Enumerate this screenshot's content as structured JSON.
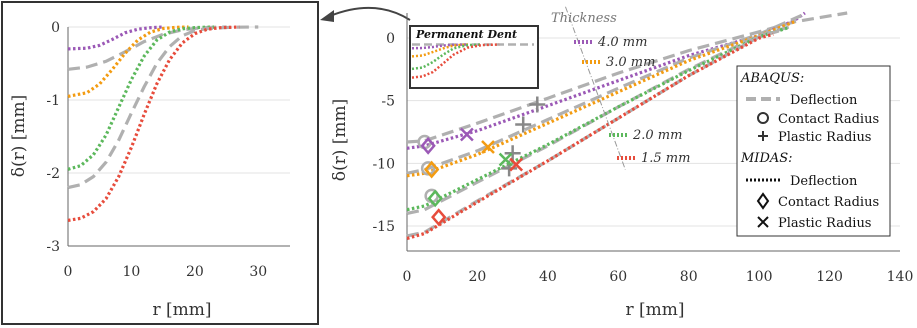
{
  "chart_data": [
    {
      "id": "inset",
      "type": "line",
      "xlabel": "r [mm]",
      "ylabel": "δ(r) [mm]",
      "xlim": [
        0,
        35
      ],
      "ylim": [
        -3,
        0
      ],
      "xticks": [
        "0",
        "10",
        "20",
        "30"
      ],
      "yticks": [
        "0",
        "-1",
        "-2",
        "-3"
      ],
      "grid": "horizontal",
      "series": [
        {
          "color": "#9b59b6",
          "style": "dotted",
          "x": [
            0,
            3,
            5,
            7,
            9,
            11,
            13,
            15
          ],
          "y": [
            -0.3,
            -0.29,
            -0.25,
            -0.17,
            -0.08,
            -0.03,
            -0.01,
            0
          ]
        },
        {
          "color": "#b0b0b0",
          "style": "dashed",
          "x": [
            0,
            3,
            6,
            9,
            12,
            15,
            18,
            21,
            25
          ],
          "y": [
            -0.58,
            -0.55,
            -0.47,
            -0.34,
            -0.2,
            -0.1,
            -0.04,
            -0.01,
            0
          ]
        },
        {
          "color": "#f39c12",
          "style": "dotted",
          "x": [
            0,
            3,
            5,
            7,
            9,
            11,
            13,
            15,
            17,
            19
          ],
          "y": [
            -0.95,
            -0.9,
            -0.78,
            -0.58,
            -0.36,
            -0.18,
            -0.07,
            -0.02,
            -0.005,
            0
          ]
        },
        {
          "color": "#5cb85c",
          "style": "dotted",
          "x": [
            0,
            2,
            4,
            6,
            8,
            10,
            12,
            14,
            16,
            18,
            20,
            23
          ],
          "y": [
            -1.95,
            -1.9,
            -1.75,
            -1.48,
            -1.1,
            -0.72,
            -0.4,
            -0.18,
            -0.07,
            -0.025,
            -0.008,
            0
          ]
        },
        {
          "color": "#b0b0b0",
          "style": "dashed",
          "x": [
            0,
            2,
            4,
            6,
            8,
            10,
            12,
            14,
            16,
            18,
            20,
            22,
            26,
            30
          ],
          "y": [
            -2.2,
            -2.16,
            -2.05,
            -1.85,
            -1.55,
            -1.18,
            -0.82,
            -0.5,
            -0.27,
            -0.12,
            -0.05,
            -0.02,
            -0.003,
            0
          ]
        },
        {
          "color": "#e74c3c",
          "style": "dotted",
          "x": [
            0,
            2,
            4,
            6,
            8,
            10,
            12,
            14,
            16,
            18,
            20,
            22,
            24,
            27
          ],
          "y": [
            -2.65,
            -2.62,
            -2.53,
            -2.35,
            -2.05,
            -1.65,
            -1.2,
            -0.78,
            -0.45,
            -0.22,
            -0.09,
            -0.03,
            -0.01,
            0
          ]
        }
      ]
    },
    {
      "id": "main",
      "type": "line",
      "xlabel": "r [mm]",
      "ylabel": "δ(r) [mm]",
      "xlim": [
        0,
        140
      ],
      "ylim": [
        -17,
        2
      ],
      "xticks": [
        "0",
        "20",
        "40",
        "60",
        "80",
        "100",
        "120",
        "140"
      ],
      "yticks": [
        "0",
        "-5",
        "-10",
        "-15"
      ],
      "grid": "horizontal",
      "annotations": {
        "thickness": "Thickness",
        "dent": "Permanent Dent",
        "t40": "4.0 mm",
        "t30": "3.0 mm",
        "t20": "2.0 mm",
        "t15": "1.5 mm"
      },
      "series": [
        {
          "color": "#b0b0b0",
          "style": "dashed",
          "x": [
            0,
            5,
            20,
            40,
            60,
            80,
            100,
            110,
            125
          ],
          "y": [
            -8.3,
            -8.2,
            -6.8,
            -4.8,
            -2.8,
            -1.0,
            0.5,
            1.3,
            2.0
          ]
        },
        {
          "color": "#9b59b6",
          "style": "dotted",
          "x": [
            0,
            5,
            20,
            40,
            60,
            80,
            100,
            110,
            113
          ],
          "y": [
            -8.8,
            -8.6,
            -7.4,
            -5.4,
            -3.4,
            -1.4,
            0.2,
            1.4,
            2.0
          ]
        },
        {
          "color": "#b0b0b0",
          "style": "dashed",
          "x": [
            0,
            5,
            20,
            40,
            60,
            80,
            100,
            112
          ],
          "y": [
            -10.8,
            -10.5,
            -9.0,
            -6.5,
            -4.0,
            -1.6,
            0.3,
            1.8
          ]
        },
        {
          "color": "#f39c12",
          "style": "dotted",
          "x": [
            0,
            5,
            20,
            40,
            60,
            80,
            100,
            110
          ],
          "y": [
            -11.0,
            -10.8,
            -9.3,
            -6.8,
            -4.3,
            -1.8,
            0.2,
            1.3
          ]
        },
        {
          "color": "#b0b0b0",
          "style": "dashed",
          "x": [
            0,
            5,
            20,
            40,
            60,
            80,
            100,
            110
          ],
          "y": [
            -14.0,
            -13.7,
            -11.5,
            -8.6,
            -5.5,
            -2.5,
            0.2,
            1.0
          ]
        },
        {
          "color": "#5cb85c",
          "style": "dotted",
          "x": [
            0,
            5,
            20,
            40,
            60,
            80,
            100,
            108
          ],
          "y": [
            -13.7,
            -13.4,
            -11.3,
            -8.5,
            -5.5,
            -2.6,
            0.1,
            0.8
          ]
        },
        {
          "color": "#b0b0b0",
          "style": "dashed",
          "x": [
            0,
            5,
            20,
            40,
            60,
            80,
            100,
            106
          ],
          "y": [
            -15.8,
            -15.5,
            -13.0,
            -9.8,
            -6.4,
            -3.0,
            0.1,
            0.6
          ]
        },
        {
          "color": "#e74c3c",
          "style": "dotted",
          "x": [
            0,
            5,
            20,
            40,
            60,
            80,
            100,
            104
          ],
          "y": [
            -16.0,
            -15.6,
            -13.1,
            -9.8,
            -6.4,
            -3.0,
            0.0,
            0.3
          ]
        }
      ],
      "dent_inset_series": [
        {
          "color": "#9b59b6",
          "x": [
            0,
            3,
            6,
            9,
            12,
            16
          ],
          "y": [
            -0.3,
            -0.28,
            -0.2,
            -0.08,
            -0.02,
            0
          ]
        },
        {
          "color": "#f39c12",
          "x": [
            0,
            3,
            6,
            9,
            12,
            16
          ],
          "y": [
            -0.95,
            -0.88,
            -0.6,
            -0.3,
            -0.08,
            0
          ]
        },
        {
          "color": "#5cb85c",
          "x": [
            0,
            3,
            6,
            9,
            12,
            16,
            20
          ],
          "y": [
            -1.95,
            -1.85,
            -1.4,
            -0.8,
            -0.3,
            -0.05,
            0
          ]
        },
        {
          "color": "#e74c3c",
          "x": [
            0,
            3,
            6,
            9,
            12,
            16,
            20,
            25
          ],
          "y": [
            -2.65,
            -2.55,
            -2.2,
            -1.5,
            -0.8,
            -0.25,
            -0.05,
            0
          ]
        }
      ],
      "thickness_line": {
        "x": [
          45,
          62
        ],
        "y": [
          2.5,
          -10.5
        ],
        "color": "#999999"
      },
      "markers": [
        {
          "symbol": "circle",
          "color": "#b0b0b0",
          "x": 5,
          "y": -8.3
        },
        {
          "symbol": "circle",
          "color": "#b0b0b0",
          "x": 6,
          "y": -10.4
        },
        {
          "symbol": "circle",
          "color": "#b0b0b0",
          "x": 7,
          "y": -12.6
        },
        {
          "symbol": "plus",
          "color": "#888888",
          "x": 37,
          "y": -5.3
        },
        {
          "symbol": "plus",
          "color": "#888888",
          "x": 33,
          "y": -6.9
        },
        {
          "symbol": "plus",
          "color": "#888888",
          "x": 30,
          "y": -9.2
        },
        {
          "symbol": "plus",
          "color": "#888888",
          "x": 29,
          "y": -10.4
        },
        {
          "symbol": "diamond",
          "color": "#9b59b6",
          "x": 6,
          "y": -8.6
        },
        {
          "symbol": "diamond",
          "color": "#f39c12",
          "x": 7,
          "y": -10.5
        },
        {
          "symbol": "diamond",
          "color": "#5cb85c",
          "x": 8,
          "y": -12.8
        },
        {
          "symbol": "diamond",
          "color": "#e74c3c",
          "x": 9,
          "y": -14.3
        },
        {
          "symbol": "cross",
          "color": "#9b59b6",
          "x": 17,
          "y": -7.7
        },
        {
          "symbol": "cross",
          "color": "#f39c12",
          "x": 23,
          "y": -8.7
        },
        {
          "symbol": "cross",
          "color": "#5cb85c",
          "x": 28,
          "y": -9.7
        },
        {
          "symbol": "cross",
          "color": "#e74c3c",
          "x": 31,
          "y": -10.1
        }
      ],
      "legend": {
        "placement": "right",
        "abaqus_title": "ABAQUS:",
        "midas_title": "MIDAS:",
        "deflection": "Deflection",
        "contact_radius": "Contact Radius",
        "plastic_radius": "Plastic Radius"
      }
    }
  ]
}
